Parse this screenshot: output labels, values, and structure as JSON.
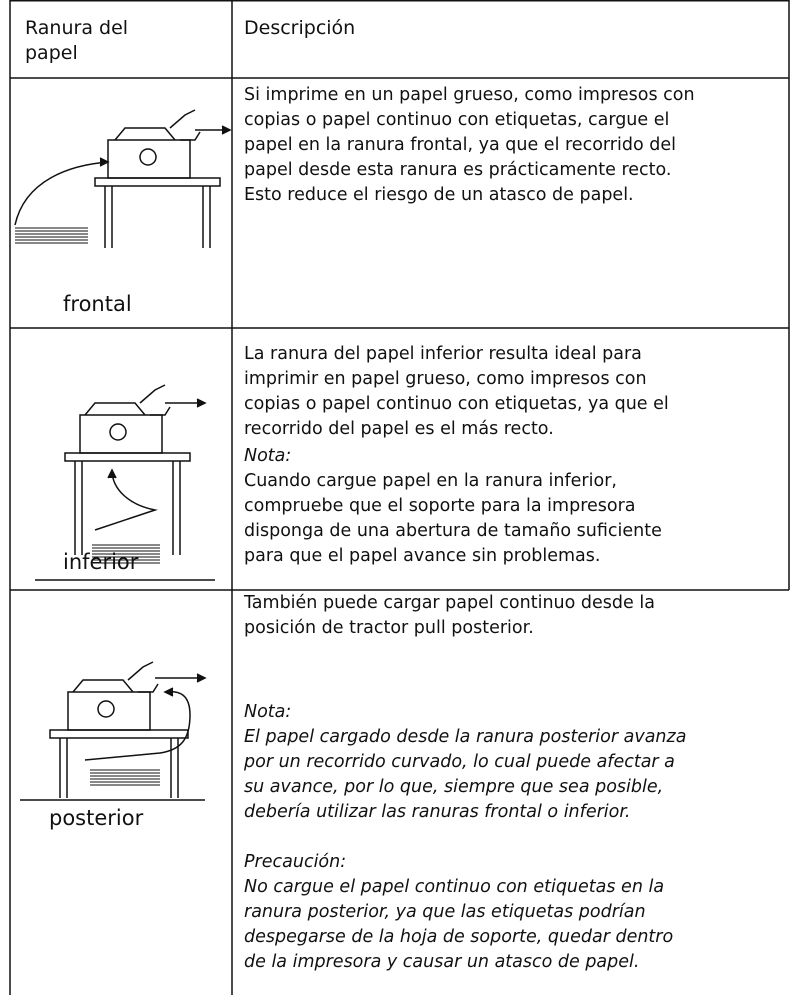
{
  "header": {
    "slot": [
      "Ranura del",
      "papel"
    ],
    "description": "Descripción"
  },
  "rows": [
    {
      "slot": "frontal",
      "text": [
        "Si imprime en un papel grueso, como impresos con",
        "copias o papel continuo con etiquetas, cargue el",
        "papel en la ranura frontal, ya que el recorrido del",
        "papel desde esta ranura es prácticamente recto.",
        "Esto reduce el riesgo de un atasco de papel."
      ]
    },
    {
      "slot": "inferior",
      "text": [
        "La ranura del papel inferior resulta ideal para",
        "imprimir en papel grueso, como impresos con",
        "copias o papel continuo con etiquetas, ya que el",
        "recorrido del papel es el más recto."
      ],
      "note": {
        "title": "Nota:",
        "text": [
          "Cuando cargue papel en la ranura inferior,",
          "compruebe que el soporte para la impresora",
          "disponga de una abertura de tamaño suficiente",
          "para que el papel avance sin problemas."
        ]
      }
    },
    {
      "slot": "posterior",
      "text": [
        "También puede cargar papel continuo desde la",
        "posición de tractor pull posterior."
      ],
      "note": {
        "title": "Nota:",
        "text": [
          "El papel cargado desde la ranura posterior avanza",
          "por un recorrido curvado, lo cual puede afectar a",
          "su avance, por lo que, siempre que sea posible,",
          "debería utilizar las ranuras frontal o inferior."
        ]
      },
      "caution": {
        "title": "Precaución:",
        "text": [
          "No cargue el papel continuo con etiquetas en la",
          "ranura posterior, ya que las etiquetas podrían",
          "despegarse de la hoja de soporte, quedar dentro",
          "de la impresora y causar un atasco de papel."
        ]
      }
    }
  ]
}
